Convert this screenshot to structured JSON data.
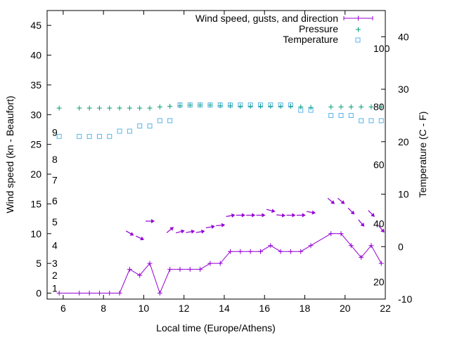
{
  "chart_data": {
    "type": "line",
    "xlabel": "Local time (Europe/Athens)",
    "ylabel": "Wind speed (kn - Beaufort)",
    "y2label": "Temperature (C - F)",
    "xlim": [
      5.2,
      22
    ],
    "ylim": [
      -1,
      47.5
    ],
    "y2lim": [
      -10,
      45
    ],
    "x_ticks": [
      6,
      8,
      10,
      12,
      14,
      16,
      18,
      20,
      22
    ],
    "y_ticks": [
      0,
      5,
      10,
      15,
      20,
      25,
      30,
      35,
      40,
      45
    ],
    "y2_ticks": [
      -10,
      0,
      10,
      20,
      30,
      40
    ],
    "beaufort_labels": [
      {
        "text": "1",
        "y": 0.8
      },
      {
        "text": "2",
        "y": 3
      },
      {
        "text": "3",
        "y": 5
      },
      {
        "text": "4",
        "y": 8
      },
      {
        "text": "5",
        "y": 12
      },
      {
        "text": "6",
        "y": 15.5
      },
      {
        "text": "7",
        "y": 19
      },
      {
        "text": "8",
        "y": 22.5
      },
      {
        "text": "9",
        "y": 27
      }
    ],
    "fahrenheit_labels": [
      {
        "text": "20",
        "y": -6.7
      },
      {
        "text": "40",
        "y": 4.4
      },
      {
        "text": "60",
        "y": 15.6
      },
      {
        "text": "80",
        "y": 26.7
      },
      {
        "text": "100",
        "y": 37.8
      }
    ],
    "legend": [
      {
        "label": "Wind speed, gusts, and direction",
        "color": "#9400d3"
      },
      {
        "label": "Pressure",
        "color": "#009e73"
      },
      {
        "label": "Temperature",
        "color": "#56b4e9"
      }
    ],
    "series": [
      {
        "name": "Wind speed",
        "color": "#9400d3",
        "x": [
          5.8,
          6.8,
          7.3,
          7.8,
          8.3,
          8.8,
          9.3,
          9.8,
          10.3,
          10.8,
          11.3,
          11.8,
          12.3,
          12.8,
          13.3,
          13.8,
          14.3,
          14.8,
          15.3,
          15.8,
          16.3,
          16.8,
          17.3,
          17.8,
          18.3,
          19.3,
          19.8,
          20.3,
          20.8,
          21.3,
          21.8
        ],
        "values": [
          0,
          0,
          0,
          0,
          0,
          0,
          4,
          3,
          5,
          0,
          4,
          4,
          4,
          4,
          5,
          5,
          7,
          7,
          7,
          7,
          8,
          7,
          7,
          7,
          8,
          10,
          10,
          8,
          6,
          8,
          5
        ]
      },
      {
        "name": "Pressure",
        "color": "#009e73",
        "x": [
          5.8,
          6.8,
          7.3,
          7.8,
          8.3,
          8.8,
          9.3,
          9.8,
          10.3,
          10.8,
          11.3,
          11.8,
          12.3,
          12.8,
          13.3,
          13.8,
          14.3,
          14.8,
          15.3,
          15.8,
          16.3,
          16.8,
          17.3,
          17.8,
          18.3,
          19.3,
          19.8,
          20.3,
          20.8,
          21.3,
          21.8
        ],
        "values": [
          31.1,
          31.1,
          31.1,
          31.1,
          31.1,
          31.1,
          31.1,
          31.1,
          31.1,
          31.3,
          31.4,
          31.5,
          31.6,
          31.6,
          31.6,
          31.5,
          31.5,
          31.4,
          31.4,
          31.4,
          31.4,
          31.4,
          31.4,
          31.3,
          31.2,
          31.3,
          31.3,
          31.3,
          31.3,
          31.3,
          31.3
        ]
      },
      {
        "name": "Temperature",
        "color": "#56b4e9",
        "x": [
          5.8,
          6.8,
          7.3,
          7.8,
          8.3,
          8.8,
          9.3,
          9.8,
          10.3,
          10.8,
          11.3,
          11.8,
          12.3,
          12.8,
          13.3,
          13.8,
          14.3,
          14.8,
          15.3,
          15.8,
          16.3,
          16.8,
          17.3,
          17.8,
          18.3,
          19.3,
          19.8,
          20.3,
          20.8,
          21.3,
          21.8
        ],
        "values": [
          21,
          21,
          21,
          21,
          21,
          22,
          22,
          23,
          23,
          24,
          24,
          27,
          27,
          27,
          27,
          27,
          27,
          27,
          27,
          27,
          27,
          27,
          27,
          26,
          26,
          25,
          25,
          25,
          24,
          24,
          24
        ]
      }
    ],
    "wind_arrows": [
      {
        "x": 9.3,
        "y": 10.1,
        "dir_deg": -30
      },
      {
        "x": 9.8,
        "y": 9.3,
        "dir_deg": -25
      },
      {
        "x": 10.3,
        "y": 12.1,
        "dir_deg": 0
      },
      {
        "x": 11.3,
        "y": 10.6,
        "dir_deg": 40
      },
      {
        "x": 11.8,
        "y": 10.3,
        "dir_deg": 15
      },
      {
        "x": 12.3,
        "y": 10.3,
        "dir_deg": 10
      },
      {
        "x": 12.8,
        "y": 10.3,
        "dir_deg": 10
      },
      {
        "x": 13.3,
        "y": 11.1,
        "dir_deg": 10
      },
      {
        "x": 13.8,
        "y": 11.4,
        "dir_deg": 5
      },
      {
        "x": 14.3,
        "y": 13.0,
        "dir_deg": 10
      },
      {
        "x": 14.8,
        "y": 13.1,
        "dir_deg": 0
      },
      {
        "x": 15.3,
        "y": 13.1,
        "dir_deg": 0
      },
      {
        "x": 15.8,
        "y": 13.1,
        "dir_deg": 0
      },
      {
        "x": 16.3,
        "y": 13.9,
        "dir_deg": -15
      },
      {
        "x": 16.8,
        "y": 13.1,
        "dir_deg": -5
      },
      {
        "x": 17.3,
        "y": 13.1,
        "dir_deg": 0
      },
      {
        "x": 17.8,
        "y": 13.1,
        "dir_deg": 0
      },
      {
        "x": 18.3,
        "y": 13.6,
        "dir_deg": -10
      },
      {
        "x": 19.3,
        "y": 15.5,
        "dir_deg": -40
      },
      {
        "x": 19.8,
        "y": 15.5,
        "dir_deg": -40
      },
      {
        "x": 20.3,
        "y": 13.8,
        "dir_deg": -45
      },
      {
        "x": 20.8,
        "y": 11.8,
        "dir_deg": -50
      },
      {
        "x": 21.3,
        "y": 13.4,
        "dir_deg": -45
      },
      {
        "x": 21.8,
        "y": 10.8,
        "dir_deg": -50
      }
    ]
  }
}
